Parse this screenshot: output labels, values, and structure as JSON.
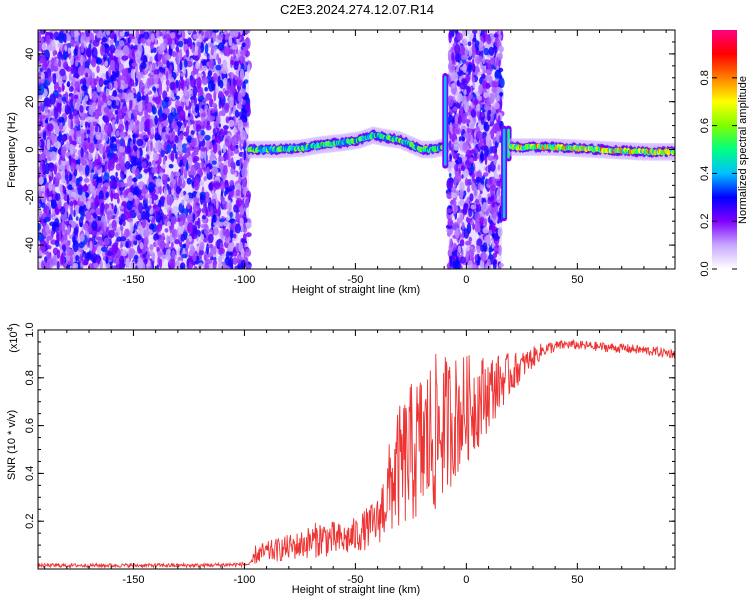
{
  "title": "C2E3.2024.274.12.07.R14",
  "chart_data": [
    {
      "type": "heatmap",
      "xlabel": "Height of straight line (km)",
      "ylabel": "Frequency (Hz)",
      "xlim": [
        -193,
        94
      ],
      "ylim": [
        -50,
        50
      ],
      "x_ticks": [
        -150,
        -100,
        -50,
        0,
        50
      ],
      "x_tick_labels": [
        "-150",
        "-100",
        "-50",
        "0",
        "50"
      ],
      "y_ticks": [
        -40,
        -20,
        0,
        20,
        40
      ],
      "y_tick_labels": [
        "-40",
        "-20",
        "0",
        "20",
        "40"
      ],
      "colorbar": {
        "label": "Normalized spectral amplitude",
        "range": [
          0,
          1
        ],
        "ticks": [
          0.0,
          0.2,
          0.4,
          0.6,
          0.8
        ],
        "tick_labels": [
          "0.0",
          "0.2",
          "0.4",
          "0.6",
          "0.8"
        ],
        "colormap": [
          "#ffffff",
          "#c8a8ff",
          "#8000ff",
          "#0000ff",
          "#00c0ff",
          "#00ff80",
          "#80ff00",
          "#ffff00",
          "#ff8000",
          "#ff0000",
          "#ff0080"
        ]
      },
      "regions": [
        {
          "kind": "noise",
          "x_range": [
            -193,
            -98
          ],
          "f_range": [
            -50,
            50
          ],
          "amplitude": 0.15
        },
        {
          "kind": "echo",
          "x_range": [
            -98,
            -8
          ],
          "amplitude": 0.5,
          "centerline": [
            [
              -98,
              0
            ],
            [
              -85,
              0
            ],
            [
              -75,
              0.5
            ],
            [
              -65,
              2
            ],
            [
              -55,
              3
            ],
            [
              -48,
              4
            ],
            [
              -42,
              6
            ],
            [
              -37,
              5
            ],
            [
              -30,
              4
            ],
            [
              -25,
              2
            ],
            [
              -20,
              0
            ],
            [
              -15,
              0
            ],
            [
              -10,
              1
            ]
          ]
        },
        {
          "kind": "noise",
          "x_range": [
            -8,
            16
          ],
          "f_range": [
            -50,
            50
          ],
          "amplitude": 0.15
        },
        {
          "kind": "spike",
          "x": -9.5,
          "f_range": [
            -8,
            32
          ],
          "amplitude": 0.4
        },
        {
          "kind": "spike",
          "x": 17,
          "f_range": [
            -30,
            10
          ],
          "amplitude": 0.4
        },
        {
          "kind": "spike",
          "x": 19,
          "f_range": [
            -5,
            10
          ],
          "amplitude": 0.5
        },
        {
          "kind": "echo",
          "x_range": [
            20,
            94
          ],
          "amplitude": 0.7,
          "centerline": [
            [
              20,
              1
            ],
            [
              40,
              1
            ],
            [
              60,
              0
            ],
            [
              80,
              -1
            ],
            [
              94,
              -1
            ]
          ]
        }
      ]
    },
    {
      "type": "line",
      "xlabel": "Height of straight line (km)",
      "ylabel": "SNR (10 * v/v)",
      "y_multiplier": "(x10",
      "y_multiplier_exp": "4",
      "y_multiplier_close": ")",
      "xlim": [
        -193,
        94
      ],
      "ylim": [
        0,
        1.0
      ],
      "x_ticks": [
        -150,
        -100,
        -50,
        0,
        50
      ],
      "x_tick_labels": [
        "-150",
        "-100",
        "-50",
        "0",
        "50"
      ],
      "y_ticks": [
        0.2,
        0.4,
        0.6,
        0.8,
        1.0
      ],
      "y_tick_labels": [
        "0.2",
        "0.4",
        "0.6",
        "0.8",
        "1.0"
      ],
      "series": [
        {
          "color": "#ee3333",
          "envelope": [
            {
              "x": -193,
              "mean": 0.015,
              "spread": 0.008
            },
            {
              "x": -120,
              "mean": 0.015,
              "spread": 0.008
            },
            {
              "x": -97,
              "mean": 0.02,
              "spread": 0.01
            },
            {
              "x": -95,
              "mean": 0.06,
              "spread": 0.04
            },
            {
              "x": -85,
              "mean": 0.08,
              "spread": 0.05
            },
            {
              "x": -75,
              "mean": 0.1,
              "spread": 0.06
            },
            {
              "x": -65,
              "mean": 0.13,
              "spread": 0.08
            },
            {
              "x": -55,
              "mean": 0.12,
              "spread": 0.07
            },
            {
              "x": -48,
              "mean": 0.15,
              "spread": 0.08
            },
            {
              "x": -40,
              "mean": 0.2,
              "spread": 0.1
            },
            {
              "x": -32,
              "mean": 0.4,
              "spread": 0.25
            },
            {
              "x": -25,
              "mean": 0.48,
              "spread": 0.3
            },
            {
              "x": -15,
              "mean": 0.55,
              "spread": 0.35
            },
            {
              "x": -10,
              "mean": 0.6,
              "spread": 0.3
            },
            {
              "x": -3,
              "mean": 0.65,
              "spread": 0.25
            },
            {
              "x": 5,
              "mean": 0.7,
              "spread": 0.2
            },
            {
              "x": 15,
              "mean": 0.78,
              "spread": 0.12
            },
            {
              "x": 25,
              "mean": 0.85,
              "spread": 0.06
            },
            {
              "x": 35,
              "mean": 0.92,
              "spread": 0.03
            },
            {
              "x": 45,
              "mean": 0.94,
              "spread": 0.02
            },
            {
              "x": 60,
              "mean": 0.93,
              "spread": 0.02
            },
            {
              "x": 75,
              "mean": 0.92,
              "spread": 0.02
            },
            {
              "x": 94,
              "mean": 0.9,
              "spread": 0.02
            }
          ]
        }
      ]
    }
  ]
}
